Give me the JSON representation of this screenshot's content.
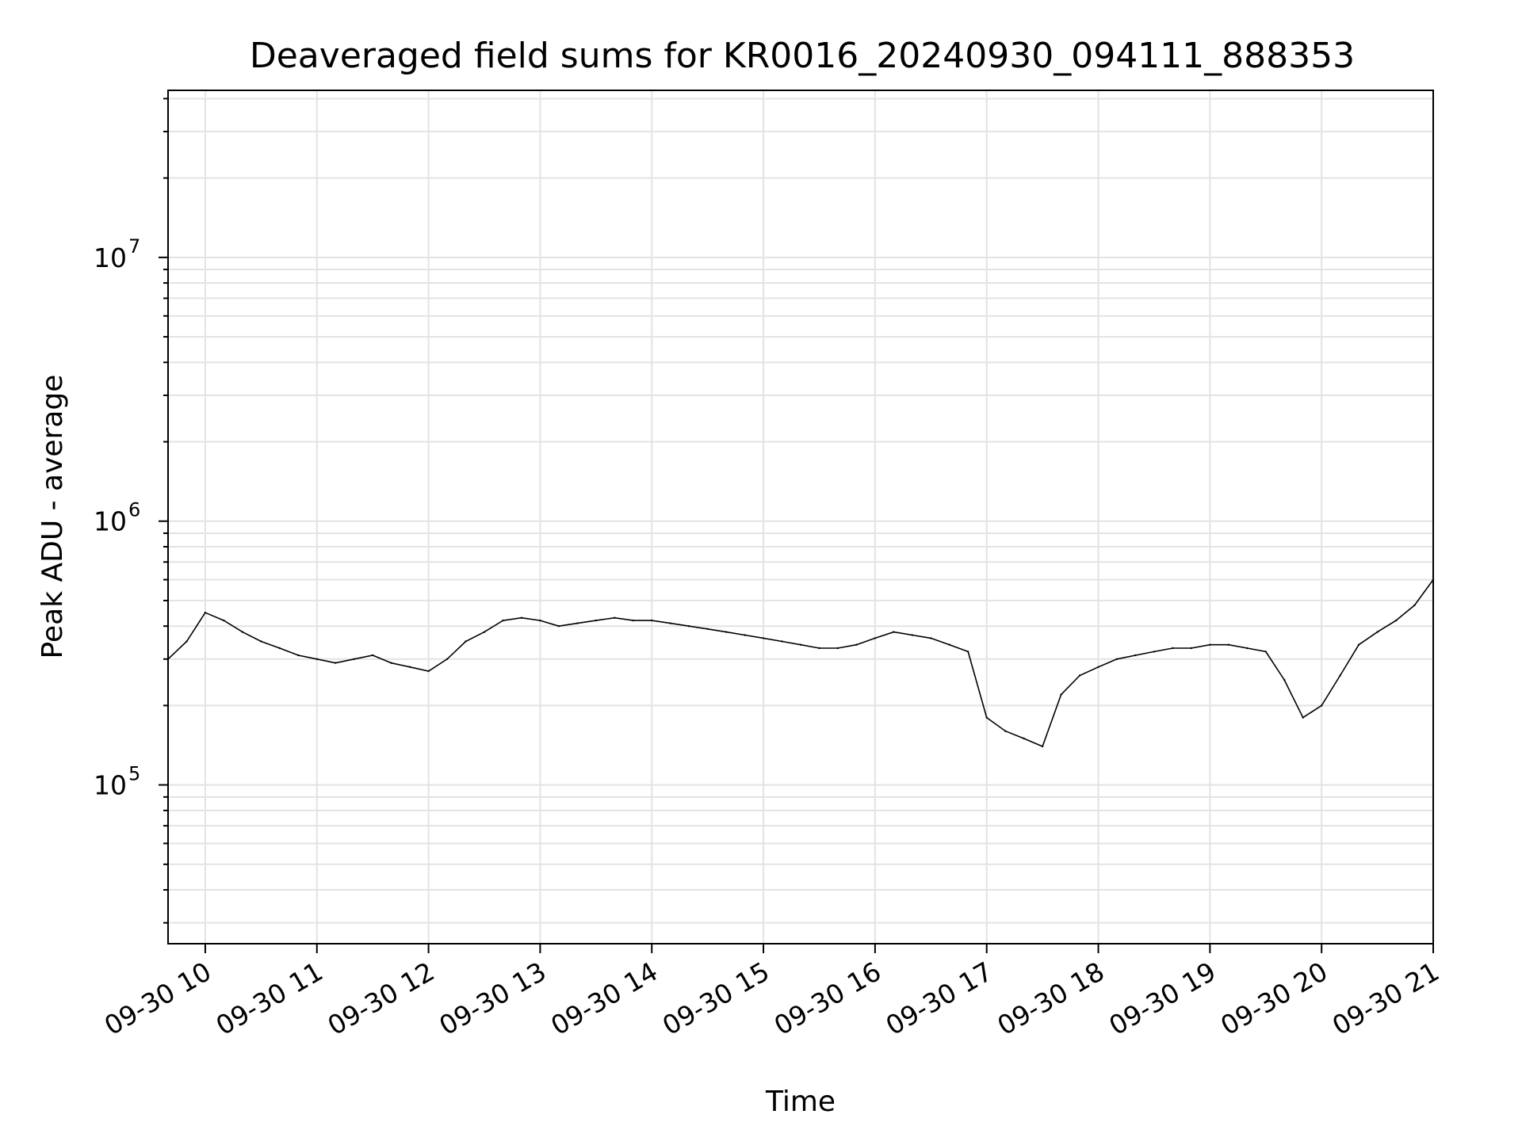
{
  "chart_data": {
    "type": "line",
    "title": "Deaveraged field sums for KR0016_20240930_094111_888353",
    "xlabel": "Time",
    "ylabel": "Peak ADU - average",
    "y_scale": "log",
    "ylim": [
      25000,
      43000000
    ],
    "xlim": [
      "2024-09-30 09:40",
      "2024-09-30 21:00"
    ],
    "grid": true,
    "x_tick_labels": [
      "09-30 10",
      "09-30 11",
      "09-30 12",
      "09-30 13",
      "09-30 14",
      "09-30 15",
      "09-30 16",
      "09-30 17",
      "09-30 18",
      "09-30 19",
      "09-30 20",
      "09-30 21"
    ],
    "y_ticks": [
      {
        "value": 100000,
        "base": "10",
        "exp": "5"
      },
      {
        "value": 1000000,
        "base": "10",
        "exp": "6"
      },
      {
        "value": 10000000,
        "base": "10",
        "exp": "7"
      }
    ],
    "line_color": "#000000",
    "series": [
      {
        "x": [
          "2024-09-30 09:40",
          "2024-09-30 09:50",
          "2024-09-30 10:00",
          "2024-09-30 10:10",
          "2024-09-30 10:20",
          "2024-09-30 10:30",
          "2024-09-30 10:40",
          "2024-09-30 10:50",
          "2024-09-30 11:00",
          "2024-09-30 11:10",
          "2024-09-30 11:20",
          "2024-09-30 11:30",
          "2024-09-30 11:40",
          "2024-09-30 11:50",
          "2024-09-30 12:00",
          "2024-09-30 12:10",
          "2024-09-30 12:20",
          "2024-09-30 12:30",
          "2024-09-30 12:40",
          "2024-09-30 12:50",
          "2024-09-30 13:00",
          "2024-09-30 13:10",
          "2024-09-30 13:20",
          "2024-09-30 13:30",
          "2024-09-30 13:40",
          "2024-09-30 13:50",
          "2024-09-30 14:00",
          "2024-09-30 14:10",
          "2024-09-30 14:20",
          "2024-09-30 14:30",
          "2024-09-30 14:40",
          "2024-09-30 14:50",
          "2024-09-30 15:00",
          "2024-09-30 15:10",
          "2024-09-30 15:20",
          "2024-09-30 15:30",
          "2024-09-30 15:40",
          "2024-09-30 15:50",
          "2024-09-30 16:00",
          "2024-09-30 16:10",
          "2024-09-30 16:20",
          "2024-09-30 16:30",
          "2024-09-30 16:40",
          "2024-09-30 16:50",
          "2024-09-30 17:00",
          "2024-09-30 17:10",
          "2024-09-30 17:20",
          "2024-09-30 17:30",
          "2024-09-30 17:40",
          "2024-09-30 17:50",
          "2024-09-30 18:00",
          "2024-09-30 18:10",
          "2024-09-30 18:20",
          "2024-09-30 18:30",
          "2024-09-30 18:40",
          "2024-09-30 18:50",
          "2024-09-30 19:00",
          "2024-09-30 19:10",
          "2024-09-30 19:20",
          "2024-09-30 19:30",
          "2024-09-30 19:40",
          "2024-09-30 19:50",
          "2024-09-30 20:00",
          "2024-09-30 20:10",
          "2024-09-30 20:20",
          "2024-09-30 20:30",
          "2024-09-30 20:40",
          "2024-09-30 20:50",
          "2024-09-30 21:00"
        ],
        "values": [
          300000,
          350000,
          450000,
          420000,
          380000,
          350000,
          330000,
          310000,
          300000,
          290000,
          300000,
          310000,
          290000,
          280000,
          270000,
          300000,
          350000,
          380000,
          420000,
          430000,
          420000,
          400000,
          410000,
          420000,
          430000,
          420000,
          420000,
          410000,
          400000,
          390000,
          380000,
          370000,
          360000,
          350000,
          340000,
          330000,
          330000,
          340000,
          360000,
          380000,
          370000,
          360000,
          340000,
          320000,
          180000,
          160000,
          150000,
          140000,
          220000,
          260000,
          280000,
          300000,
          310000,
          320000,
          330000,
          330000,
          340000,
          340000,
          330000,
          320000,
          250000,
          180000,
          200000,
          260000,
          340000,
          380000,
          420000,
          480000,
          600000
        ]
      }
    ]
  }
}
